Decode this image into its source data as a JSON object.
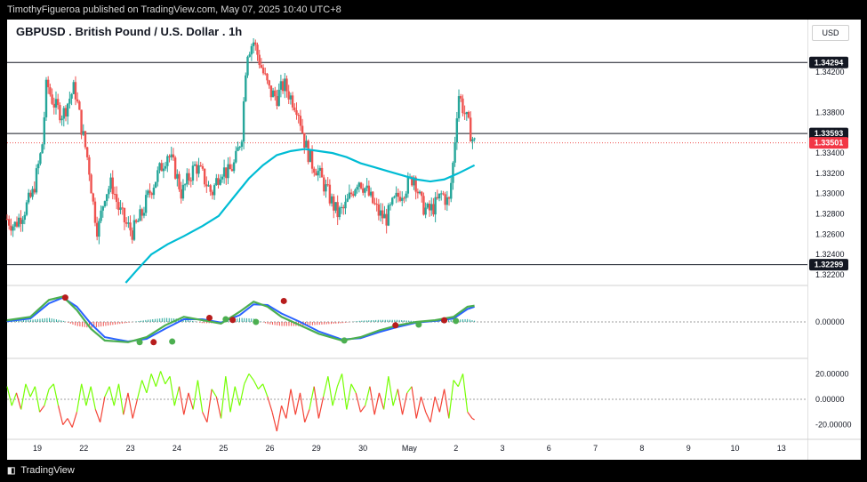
{
  "publish_line": "TimothyFigueroa published on TradingView.com, May 07, 2025 10:40 UTC+8",
  "title": "GBPUSD . British Pound / U.S. Dollar . 1h",
  "currency": "USD",
  "brand": "TradingView",
  "brand_icon": "tradingview-logo-icon",
  "colors": {
    "up_candle": "#26a69a",
    "down_candle": "#ef5350",
    "ma_line": "#00bcd4",
    "osc_green": "#4caf50",
    "osc_red": "#b71c1c",
    "osc_blue": "#2962ff",
    "rsi_up": "#76ff03",
    "rsi_down": "#f44336",
    "current_price_tag": "#f23645"
  },
  "chart_data": [
    {
      "type": "candlestick",
      "panel": "price",
      "title": "GBPUSD . British Pound / U.S. Dollar . 1h",
      "ylim": [
        1.3212,
        1.347
      ],
      "y_ticks": [
        1.322,
        1.324,
        1.326,
        1.328,
        1.33,
        1.332,
        1.334,
        1.338,
        1.342
      ],
      "y_tick_labels": [
        "1.32200",
        "1.32400",
        "1.32600",
        "1.32800",
        "1.33000",
        "1.33200",
        "1.33400",
        "1.33800",
        "1.34200"
      ],
      "x_tick_labels": [
        "19",
        "22",
        "23",
        "24",
        "25",
        "26",
        "29",
        "30",
        "May",
        "2",
        "3",
        "6",
        "7",
        "8",
        "9",
        "10",
        "13"
      ],
      "x_tick_positions": [
        0,
        1,
        2,
        3,
        4,
        5,
        6,
        7,
        8,
        9,
        10,
        11,
        12,
        13,
        14,
        15,
        16
      ],
      "horizontal_levels": [
        {
          "value": 1.34294,
          "label": "1.34294",
          "style": "solid"
        },
        {
          "value": 1.33593,
          "label": "1.33593",
          "style": "solid"
        },
        {
          "value": 1.32299,
          "label": "1.32299",
          "style": "solid"
        },
        {
          "value": 1.33501,
          "label": "1.33501",
          "style": "dotted-red",
          "current": true
        }
      ],
      "close_path": [
        [
          0.0,
          1.3275
        ],
        [
          0.15,
          1.3268
        ],
        [
          0.35,
          1.3282
        ],
        [
          0.55,
          1.33
        ],
        [
          0.75,
          1.3345
        ],
        [
          0.85,
          1.341
        ],
        [
          0.95,
          1.3395
        ],
        [
          1.05,
          1.3385
        ],
        [
          1.2,
          1.3378
        ],
        [
          1.35,
          1.3395
        ],
        [
          1.45,
          1.3405
        ],
        [
          1.6,
          1.3365
        ],
        [
          1.75,
          1.333
        ],
        [
          1.85,
          1.329
        ],
        [
          1.95,
          1.3262
        ],
        [
          2.1,
          1.33
        ],
        [
          2.25,
          1.331
        ],
        [
          2.4,
          1.3285
        ],
        [
          2.55,
          1.327
        ],
        [
          2.7,
          1.3262
        ],
        [
          2.9,
          1.328
        ],
        [
          3.05,
          1.33
        ],
        [
          3.25,
          1.332
        ],
        [
          3.45,
          1.334
        ],
        [
          3.6,
          1.3325
        ],
        [
          3.75,
          1.33
        ],
        [
          3.9,
          1.3315
        ],
        [
          4.05,
          1.3328
        ],
        [
          4.2,
          1.3318
        ],
        [
          4.4,
          1.33
        ],
        [
          4.6,
          1.3325
        ],
        [
          4.75,
          1.332
        ],
        [
          4.9,
          1.333
        ],
        [
          5.05,
          1.336
        ],
        [
          5.15,
          1.344
        ],
        [
          5.3,
          1.345
        ],
        [
          5.4,
          1.3435
        ],
        [
          5.5,
          1.342
        ],
        [
          5.65,
          1.34
        ],
        [
          5.8,
          1.3395
        ],
        [
          5.95,
          1.3408
        ],
        [
          6.1,
          1.3395
        ],
        [
          6.25,
          1.3385
        ],
        [
          6.4,
          1.335
        ],
        [
          6.55,
          1.333
        ],
        [
          6.65,
          1.3325
        ],
        [
          6.8,
          1.331
        ],
        [
          6.95,
          1.3295
        ],
        [
          7.1,
          1.328
        ],
        [
          7.25,
          1.3285
        ],
        [
          7.4,
          1.33
        ],
        [
          7.55,
          1.3315
        ],
        [
          7.7,
          1.3305
        ],
        [
          7.85,
          1.3292
        ],
        [
          8.0,
          1.328
        ],
        [
          8.15,
          1.3275
        ],
        [
          8.3,
          1.329
        ],
        [
          8.45,
          1.33
        ],
        [
          8.6,
          1.3308
        ],
        [
          8.75,
          1.3318
        ],
        [
          8.9,
          1.329
        ],
        [
          9.05,
          1.3282
        ],
        [
          9.2,
          1.3288
        ],
        [
          9.35,
          1.33
        ],
        [
          9.5,
          1.329
        ],
        [
          9.6,
          1.3335
        ],
        [
          9.7,
          1.34
        ],
        [
          9.8,
          1.3385
        ],
        [
          9.9,
          1.337
        ],
        [
          10.0,
          1.3355
        ],
        [
          10.05,
          1.335
        ]
      ],
      "ma_path": [
        [
          2.55,
          1.3212
        ],
        [
          2.8,
          1.3225
        ],
        [
          3.1,
          1.324
        ],
        [
          3.45,
          1.325
        ],
        [
          3.8,
          1.3258
        ],
        [
          4.2,
          1.3268
        ],
        [
          4.55,
          1.3278
        ],
        [
          4.9,
          1.3298
        ],
        [
          5.2,
          1.3315
        ],
        [
          5.5,
          1.3328
        ],
        [
          5.8,
          1.3338
        ],
        [
          6.1,
          1.3342
        ],
        [
          6.4,
          1.3344
        ],
        [
          6.7,
          1.3342
        ],
        [
          7.0,
          1.334
        ],
        [
          7.3,
          1.3336
        ],
        [
          7.6,
          1.333
        ],
        [
          7.9,
          1.3326
        ],
        [
          8.2,
          1.3322
        ],
        [
          8.5,
          1.3318
        ],
        [
          8.8,
          1.3314
        ],
        [
          9.1,
          1.3312
        ],
        [
          9.4,
          1.3314
        ],
        [
          9.7,
          1.332
        ],
        [
          10.05,
          1.3328
        ]
      ]
    },
    {
      "type": "line",
      "panel": "oscillator",
      "ylim": [
        -1,
        1
      ],
      "y_ticks": [
        0
      ],
      "y_tick_labels": [
        "0.00000"
      ],
      "series": [
        {
          "values": [
            [
              0.0,
              0.05
            ],
            [
              0.5,
              0.15
            ],
            [
              0.9,
              0.65
            ],
            [
              1.2,
              0.75
            ],
            [
              1.5,
              0.35
            ],
            [
              1.8,
              -0.2
            ],
            [
              2.1,
              -0.55
            ],
            [
              2.6,
              -0.6
            ],
            [
              3.0,
              -0.45
            ],
            [
              3.4,
              -0.1
            ],
            [
              3.8,
              0.15
            ],
            [
              4.2,
              0.05
            ],
            [
              4.6,
              -0.05
            ],
            [
              5.0,
              0.3
            ],
            [
              5.3,
              0.6
            ],
            [
              5.6,
              0.45
            ],
            [
              5.9,
              0.15
            ],
            [
              6.3,
              -0.1
            ],
            [
              6.7,
              -0.35
            ],
            [
              7.2,
              -0.55
            ],
            [
              7.6,
              -0.45
            ],
            [
              8.0,
              -0.25
            ],
            [
              8.4,
              -0.1
            ],
            [
              8.8,
              0.0
            ],
            [
              9.2,
              0.05
            ],
            [
              9.6,
              0.15
            ],
            [
              9.9,
              0.45
            ],
            [
              10.05,
              0.48
            ]
          ]
        },
        {
          "values": [
            [
              0.0,
              0.02
            ],
            [
              0.5,
              0.1
            ],
            [
              0.9,
              0.55
            ],
            [
              1.2,
              0.72
            ],
            [
              1.5,
              0.45
            ],
            [
              1.8,
              -0.05
            ],
            [
              2.1,
              -0.45
            ],
            [
              2.6,
              -0.58
            ],
            [
              3.0,
              -0.5
            ],
            [
              3.4,
              -0.2
            ],
            [
              3.8,
              0.08
            ],
            [
              4.2,
              0.08
            ],
            [
              4.6,
              -0.02
            ],
            [
              5.0,
              0.2
            ],
            [
              5.3,
              0.52
            ],
            [
              5.6,
              0.5
            ],
            [
              5.9,
              0.25
            ],
            [
              6.3,
              0.0
            ],
            [
              6.7,
              -0.28
            ],
            [
              7.2,
              -0.52
            ],
            [
              7.6,
              -0.48
            ],
            [
              8.0,
              -0.3
            ],
            [
              8.4,
              -0.15
            ],
            [
              8.8,
              -0.02
            ],
            [
              9.2,
              0.03
            ],
            [
              9.6,
              0.1
            ],
            [
              9.9,
              0.38
            ],
            [
              10.05,
              0.45
            ]
          ]
        }
      ],
      "signal_dots": [
        {
          "x": 1.25,
          "value": 0.72,
          "color": "red"
        },
        {
          "x": 2.85,
          "value": -0.6,
          "color": "green"
        },
        {
          "x": 3.15,
          "value": -0.6,
          "color": "red"
        },
        {
          "x": 3.55,
          "value": -0.58,
          "color": "green"
        },
        {
          "x": 4.35,
          "value": 0.12,
          "color": "red"
        },
        {
          "x": 4.7,
          "value": 0.08,
          "color": "green"
        },
        {
          "x": 4.85,
          "value": 0.06,
          "color": "red"
        },
        {
          "x": 5.35,
          "value": 0.0,
          "color": "green"
        },
        {
          "x": 5.95,
          "value": 0.62,
          "color": "red"
        },
        {
          "x": 7.25,
          "value": -0.55,
          "color": "green"
        },
        {
          "x": 8.35,
          "value": -0.1,
          "color": "red"
        },
        {
          "x": 8.85,
          "value": -0.08,
          "color": "green"
        },
        {
          "x": 9.4,
          "value": 0.05,
          "color": "red"
        },
        {
          "x": 9.65,
          "value": 0.03,
          "color": "green"
        }
      ]
    },
    {
      "type": "line",
      "panel": "momentum",
      "ylim": [
        -30,
        30
      ],
      "y_ticks": [
        20,
        0,
        -20
      ],
      "y_tick_labels": [
        "20.00000",
        "0.00000",
        "-20.00000"
      ],
      "values": [
        [
          0.0,
          10
        ],
        [
          0.1,
          -5
        ],
        [
          0.2,
          5
        ],
        [
          0.3,
          -8
        ],
        [
          0.4,
          12
        ],
        [
          0.5,
          2
        ],
        [
          0.6,
          10
        ],
        [
          0.7,
          -10
        ],
        [
          0.8,
          -5
        ],
        [
          0.9,
          8
        ],
        [
          1.0,
          12
        ],
        [
          1.1,
          -5
        ],
        [
          1.2,
          -20
        ],
        [
          1.3,
          -15
        ],
        [
          1.4,
          -22
        ],
        [
          1.5,
          -10
        ],
        [
          1.6,
          12
        ],
        [
          1.7,
          -5
        ],
        [
          1.8,
          10
        ],
        [
          1.9,
          -8
        ],
        [
          2.0,
          -18
        ],
        [
          2.1,
          2
        ],
        [
          2.2,
          10
        ],
        [
          2.3,
          -5
        ],
        [
          2.4,
          12
        ],
        [
          2.5,
          -12
        ],
        [
          2.6,
          5
        ],
        [
          2.7,
          -15
        ],
        [
          2.8,
          0
        ],
        [
          2.9,
          15
        ],
        [
          3.0,
          5
        ],
        [
          3.1,
          20
        ],
        [
          3.2,
          10
        ],
        [
          3.3,
          22
        ],
        [
          3.4,
          12
        ],
        [
          3.5,
          18
        ],
        [
          3.6,
          -5
        ],
        [
          3.7,
          10
        ],
        [
          3.8,
          -12
        ],
        [
          3.9,
          5
        ],
        [
          4.0,
          -8
        ],
        [
          4.1,
          15
        ],
        [
          4.2,
          -10
        ],
        [
          4.3,
          -18
        ],
        [
          4.4,
          8
        ],
        [
          4.5,
          2
        ],
        [
          4.6,
          -15
        ],
        [
          4.7,
          18
        ],
        [
          4.8,
          -10
        ],
        [
          4.9,
          10
        ],
        [
          5.0,
          -5
        ],
        [
          5.1,
          12
        ],
        [
          5.2,
          20
        ],
        [
          5.3,
          15
        ],
        [
          5.4,
          8
        ],
        [
          5.5,
          12
        ],
        [
          5.6,
          2
        ],
        [
          5.7,
          -10
        ],
        [
          5.8,
          -25
        ],
        [
          5.9,
          -5
        ],
        [
          6.0,
          -15
        ],
        [
          6.1,
          8
        ],
        [
          6.2,
          -12
        ],
        [
          6.3,
          5
        ],
        [
          6.4,
          -18
        ],
        [
          6.5,
          -8
        ],
        [
          6.6,
          10
        ],
        [
          6.7,
          -15
        ],
        [
          6.8,
          2
        ],
        [
          6.9,
          18
        ],
        [
          7.0,
          -5
        ],
        [
          7.1,
          10
        ],
        [
          7.2,
          20
        ],
        [
          7.3,
          -8
        ],
        [
          7.4,
          12
        ],
        [
          7.5,
          5
        ],
        [
          7.6,
          -10
        ],
        [
          7.7,
          -5
        ],
        [
          7.8,
          10
        ],
        [
          7.9,
          -12
        ],
        [
          8.0,
          5
        ],
        [
          8.1,
          -8
        ],
        [
          8.2,
          18
        ],
        [
          8.3,
          -5
        ],
        [
          8.4,
          8
        ],
        [
          8.5,
          -12
        ],
        [
          8.6,
          5
        ],
        [
          8.7,
          10
        ],
        [
          8.8,
          -15
        ],
        [
          8.9,
          2
        ],
        [
          9.0,
          -10
        ],
        [
          9.1,
          -18
        ],
        [
          9.2,
          2
        ],
        [
          9.3,
          -10
        ],
        [
          9.4,
          8
        ],
        [
          9.5,
          -15
        ],
        [
          9.6,
          15
        ],
        [
          9.7,
          10
        ],
        [
          9.8,
          20
        ],
        [
          9.9,
          -10
        ],
        [
          10.0,
          -15
        ],
        [
          10.05,
          -16
        ]
      ]
    }
  ]
}
